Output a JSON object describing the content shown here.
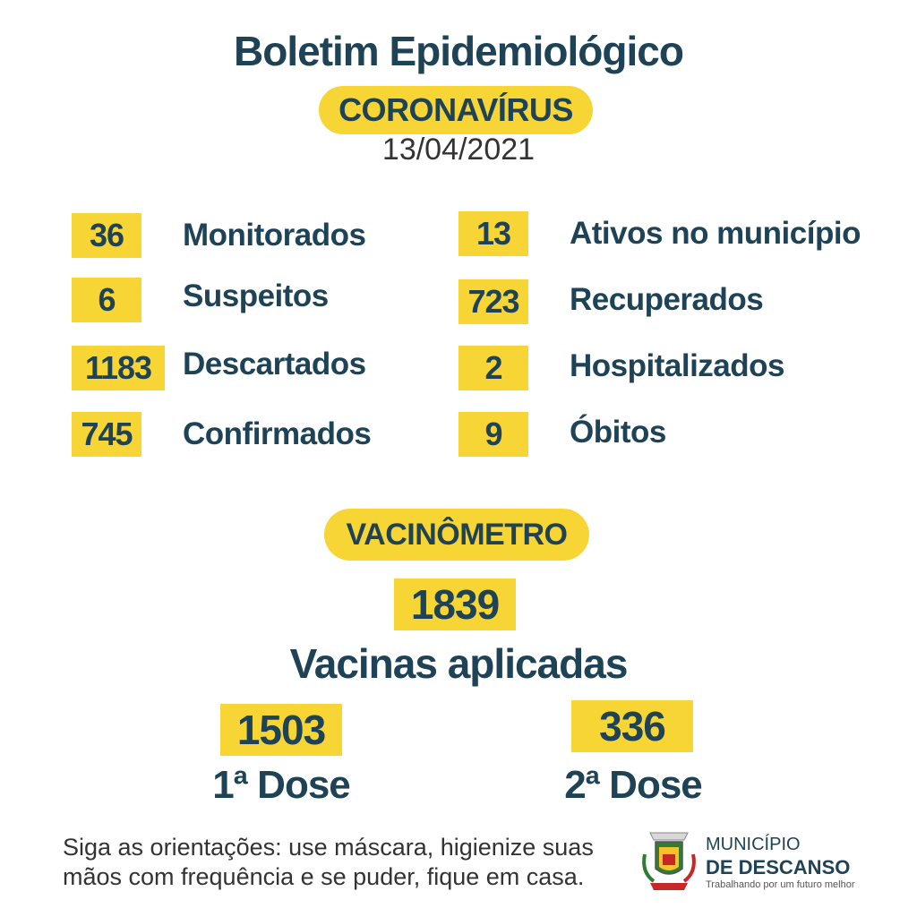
{
  "header": {
    "title": "Boletim Epidemiológico",
    "badge": "CORONAVÍRUS",
    "date": "13/04/2021"
  },
  "stats_left": [
    {
      "value": "36",
      "label": "Monitorados"
    },
    {
      "value": "6",
      "label": "Suspeitos"
    },
    {
      "value": "1183",
      "label": "Descartados"
    },
    {
      "value": "745",
      "label": "Confirmados"
    }
  ],
  "stats_right": [
    {
      "value": "13",
      "label": "Ativos no município"
    },
    {
      "value": "723",
      "label": "Recuperados"
    },
    {
      "value": "2",
      "label": "Hospitalizados"
    },
    {
      "value": "9",
      "label": "Óbitos"
    }
  ],
  "vaccine": {
    "badge": "VACINÔMETRO",
    "total": "1839",
    "total_label": "Vacinas aplicadas",
    "dose1": {
      "value": "1503",
      "label": "1ª Dose"
    },
    "dose2": {
      "value": "336",
      "label": "2ª Dose"
    }
  },
  "footer": {
    "line1": "Siga as orientações: use máscara, higienize suas",
    "line2": "mãos com frequência e se puder, fique em casa."
  },
  "municipality": {
    "prefix": "MUNICÍPIO",
    "name": "DE DESCANSO",
    "slogan": "Trabalhando por um futuro melhor",
    "crest_icon": "municipal-coat-of-arms-icon"
  },
  "colors": {
    "accent": "#f7d535",
    "text": "#1f4356"
  }
}
